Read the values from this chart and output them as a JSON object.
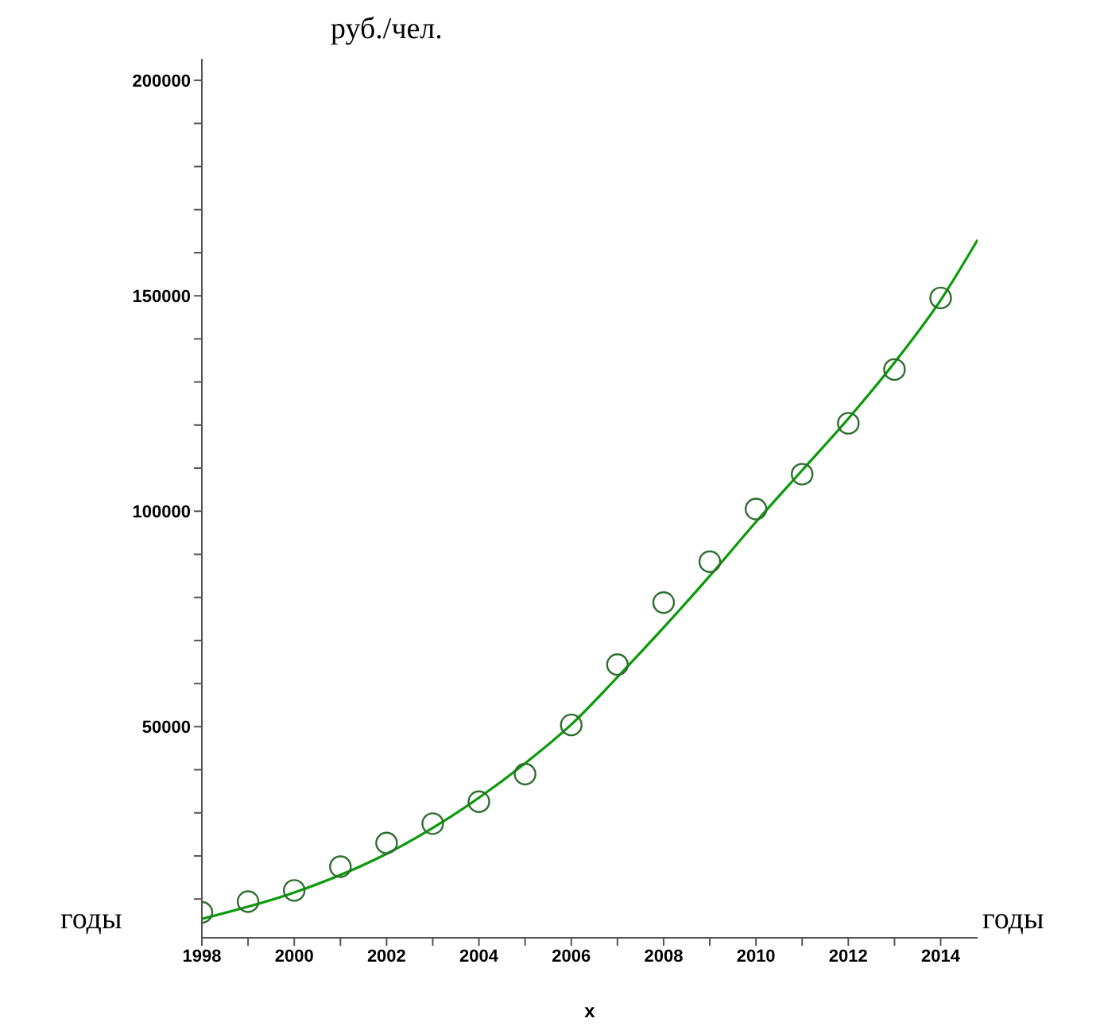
{
  "chart_data": {
    "type": "scatter",
    "ylabel": "руб./чел.",
    "xlabel": "x",
    "annotations": [
      "годы",
      "годы"
    ],
    "xlim": [
      1998,
      2014.8
    ],
    "xticks": [
      {
        "value": 1998,
        "label": "1998"
      },
      {
        "value": 1999,
        "label": null
      },
      2000,
      {
        "value": 2001,
        "label": null
      },
      2002,
      {
        "value": 2003,
        "label": null
      },
      2004,
      {
        "value": 2005,
        "label": null
      },
      2006,
      {
        "value": 2007,
        "label": null
      },
      2008,
      {
        "value": 2009,
        "label": null
      },
      2010,
      {
        "value": 2011,
        "label": null
      },
      2012,
      {
        "value": 2013,
        "label": null
      },
      2014
    ],
    "ylim": [
      1000,
      205000
    ],
    "yticks": [
      {
        "value": 10000,
        "label": null
      },
      {
        "value": 20000,
        "label": null
      },
      {
        "value": 30000,
        "label": null
      },
      {
        "value": 40000,
        "label": null
      },
      50000,
      {
        "value": 60000,
        "label": null
      },
      {
        "value": 70000,
        "label": null
      },
      {
        "value": 80000,
        "label": null
      },
      {
        "value": 90000,
        "label": null
      },
      100000,
      {
        "value": 110000,
        "label": null
      },
      {
        "value": 120000,
        "label": null
      },
      {
        "value": 130000,
        "label": null
      },
      {
        "value": 140000,
        "label": null
      },
      150000,
      {
        "value": 160000,
        "label": null
      },
      {
        "value": 170000,
        "label": null
      },
      {
        "value": 180000,
        "label": null
      },
      {
        "value": 190000,
        "label": null
      },
      200000
    ],
    "series": [
      {
        "marker": "circle",
        "color": "#2f6e2f",
        "x": [
          1998,
          1999,
          2000,
          2001,
          2002,
          2003,
          2004,
          2005,
          2006,
          2007,
          2008,
          2009,
          2010,
          2011,
          2012,
          2013,
          2014
        ],
        "values": [
          6900,
          9400,
          12000,
          17500,
          23000,
          27500,
          32600,
          39000,
          50400,
          64400,
          78800,
          88300,
          100500,
          108600,
          120400,
          132900,
          149500
        ]
      },
      {
        "type": "line",
        "marker": "none",
        "line_style": "solid",
        "color": "#0a9a0a",
        "x": [
          1998,
          2000,
          2002,
          2004,
          2005,
          2006,
          2007,
          2008,
          2009,
          2010,
          2011,
          2012,
          2013,
          2014,
          2014.8
        ],
        "values": [
          5400,
          11500,
          20500,
          33500,
          41500,
          50500,
          61500,
          73000,
          85000,
          97500,
          109500,
          121500,
          134500,
          149000,
          163000
        ]
      }
    ]
  }
}
